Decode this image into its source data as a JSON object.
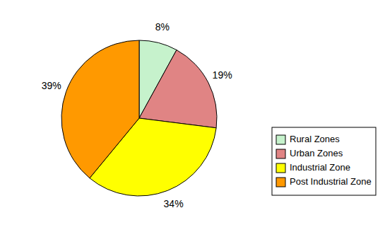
{
  "chart_data": {
    "type": "pie",
    "categories": [
      "Rural Zones",
      "Urban Zones",
      "Industrial Zone",
      "Post Industrial Zone"
    ],
    "values": [
      8,
      19,
      34,
      39
    ],
    "value_labels": [
      "8%",
      "19%",
      "34%",
      "39%"
    ],
    "colors": [
      "#c6f2cc",
      "#e08484",
      "#ffff00",
      "#ff9900"
    ],
    "data_labels": true,
    "legend": "lower right"
  }
}
